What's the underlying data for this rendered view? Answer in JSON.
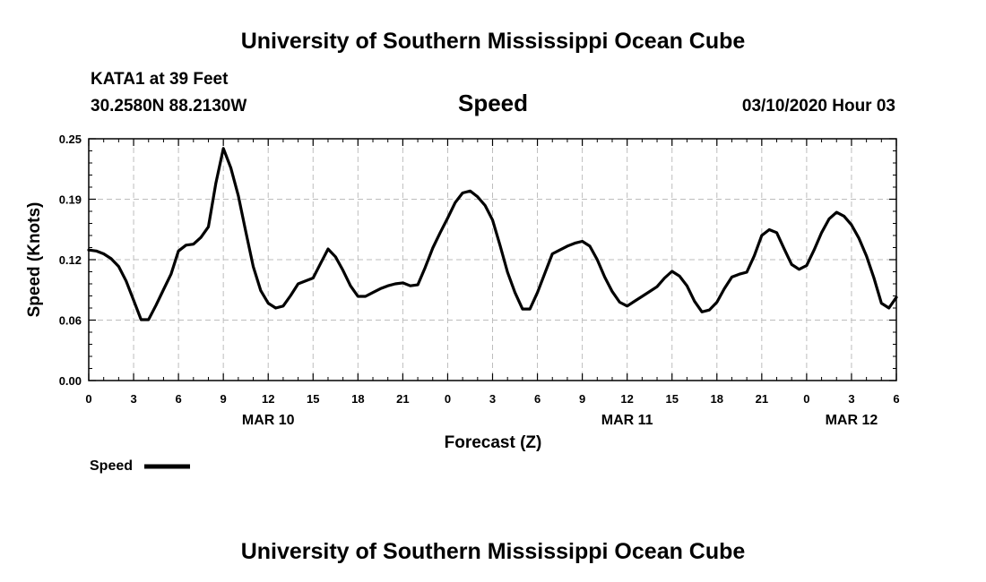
{
  "header": {
    "title_top": "University of Southern Mississippi Ocean Cube",
    "station": "KATA1 at 39 Feet",
    "coords": "30.2580N 88.2130W",
    "parameter": "Speed",
    "issued": "03/10/2020 Hour 03",
    "title_bottom": "University of Southern Mississippi Ocean Cube"
  },
  "legend": {
    "label": "Speed",
    "color": "#000000"
  },
  "chart_data": {
    "type": "line",
    "xlabel": "Forecast (Z)",
    "ylabel": "Speed (Knots)",
    "x_unit": "forecast hour",
    "xlim": [
      0,
      54
    ],
    "ylim": [
      0,
      0.25
    ],
    "yticks": [
      "0.00",
      "0.06",
      "0.12",
      "0.19",
      "0.25"
    ],
    "ytick_values": [
      0,
      0.0625,
      0.125,
      0.1875,
      0.25
    ],
    "xtick_hours": [
      0,
      3,
      6,
      9,
      12,
      15,
      18,
      21,
      24,
      27,
      30,
      33,
      36,
      39,
      42,
      45,
      48,
      51,
      54
    ],
    "xtick_labels": [
      "0",
      "3",
      "6",
      "9",
      "12",
      "15",
      "18",
      "21",
      "0",
      "3",
      "6",
      "9",
      "12",
      "15",
      "18",
      "21",
      "0",
      "3",
      "6"
    ],
    "date_labels": [
      {
        "hour": 12,
        "label": "MAR 10"
      },
      {
        "hour": 36,
        "label": "MAR 11"
      },
      {
        "hour": 51,
        "label": "MAR 12"
      }
    ],
    "grid": true,
    "legend_position": "bottom-left",
    "series": [
      {
        "name": "Speed",
        "color": "#000000",
        "x": [
          0,
          0.5,
          1,
          1.5,
          2,
          2.5,
          3,
          3.5,
          4,
          4.5,
          5,
          5.5,
          6,
          6.5,
          7,
          7.5,
          8,
          8.5,
          9,
          9.5,
          10,
          10.5,
          11,
          11.5,
          12,
          12.5,
          13,
          13.5,
          14,
          14.5,
          15,
          15.5,
          16,
          16.5,
          17,
          17.5,
          18,
          18.5,
          19,
          19.5,
          20,
          20.5,
          21,
          21.5,
          22,
          22.5,
          23,
          23.5,
          24,
          24.5,
          25,
          25.5,
          26,
          26.5,
          27,
          27.5,
          28,
          28.5,
          29,
          29.5,
          30,
          30.5,
          31,
          31.5,
          32,
          32.5,
          33,
          33.5,
          34,
          34.5,
          35,
          35.5,
          36,
          36.5,
          37,
          37.5,
          38,
          38.5,
          39,
          39.5,
          40,
          40.5,
          41,
          41.5,
          42,
          42.5,
          43,
          43.5,
          44,
          44.5,
          45,
          45.5,
          46,
          46.5,
          47,
          47.5,
          48,
          48.5,
          49,
          49.5,
          50,
          50.5,
          51,
          51.5,
          52,
          52.5,
          53,
          53.5,
          54
        ],
        "y": [
          0.135,
          0.134,
          0.131,
          0.126,
          0.118,
          0.103,
          0.083,
          0.063,
          0.063,
          0.078,
          0.094,
          0.11,
          0.134,
          0.14,
          0.141,
          0.148,
          0.159,
          0.204,
          0.24,
          0.22,
          0.191,
          0.154,
          0.118,
          0.093,
          0.08,
          0.075,
          0.077,
          0.088,
          0.1,
          0.103,
          0.106,
          0.121,
          0.136,
          0.128,
          0.114,
          0.098,
          0.087,
          0.087,
          0.091,
          0.095,
          0.098,
          0.1,
          0.101,
          0.098,
          0.099,
          0.117,
          0.137,
          0.153,
          0.168,
          0.184,
          0.194,
          0.196,
          0.19,
          0.181,
          0.166,
          0.14,
          0.112,
          0.091,
          0.074,
          0.074,
          0.091,
          0.111,
          0.131,
          0.135,
          0.139,
          0.142,
          0.144,
          0.139,
          0.125,
          0.107,
          0.092,
          0.081,
          0.077,
          0.082,
          0.087,
          0.092,
          0.097,
          0.106,
          0.113,
          0.108,
          0.098,
          0.082,
          0.071,
          0.073,
          0.081,
          0.095,
          0.107,
          0.11,
          0.112,
          0.129,
          0.15,
          0.156,
          0.153,
          0.136,
          0.12,
          0.115,
          0.119,
          0.135,
          0.153,
          0.167,
          0.174,
          0.17,
          0.161,
          0.147,
          0.129,
          0.106,
          0.08,
          0.075,
          0.086
        ]
      }
    ]
  }
}
